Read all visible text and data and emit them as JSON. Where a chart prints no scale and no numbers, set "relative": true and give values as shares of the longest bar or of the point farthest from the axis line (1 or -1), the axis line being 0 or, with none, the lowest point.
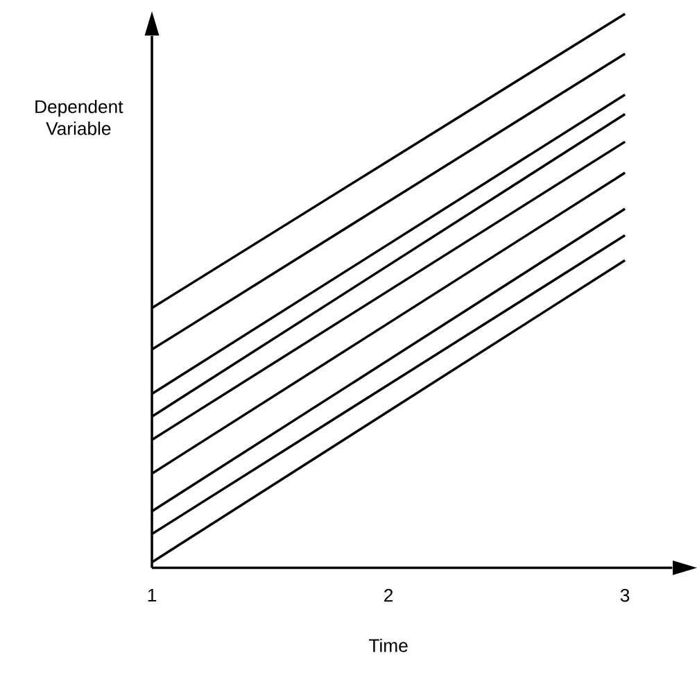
{
  "chart_data": {
    "type": "line",
    "xlabel": "Time",
    "ylabel": "Dependent Variable",
    "relative": true,
    "x": [
      1,
      3
    ],
    "xlim": [
      1,
      3.2
    ],
    "xticks": [
      1,
      2,
      3
    ],
    "grid": false,
    "marker": "none",
    "line_style": "solid",
    "series": [
      {
        "color": "#000000",
        "values": [
          0.469,
          1
        ]
      },
      {
        "color": "#000000",
        "values": [
          0.394,
          0.928
        ]
      },
      {
        "color": "#000000",
        "values": [
          0.314,
          0.854
        ]
      },
      {
        "color": "#000000",
        "values": [
          0.273,
          0.819
        ]
      },
      {
        "color": "#000000",
        "values": [
          0.231,
          0.769
        ]
      },
      {
        "color": "#000000",
        "values": [
          0.17,
          0.713
        ]
      },
      {
        "color": "#000000",
        "values": [
          0.102,
          0.648
        ]
      },
      {
        "color": "#000000",
        "values": [
          0.061,
          0.6
        ]
      },
      {
        "color": "#000000",
        "values": [
          0.01,
          0.555
        ]
      }
    ]
  }
}
